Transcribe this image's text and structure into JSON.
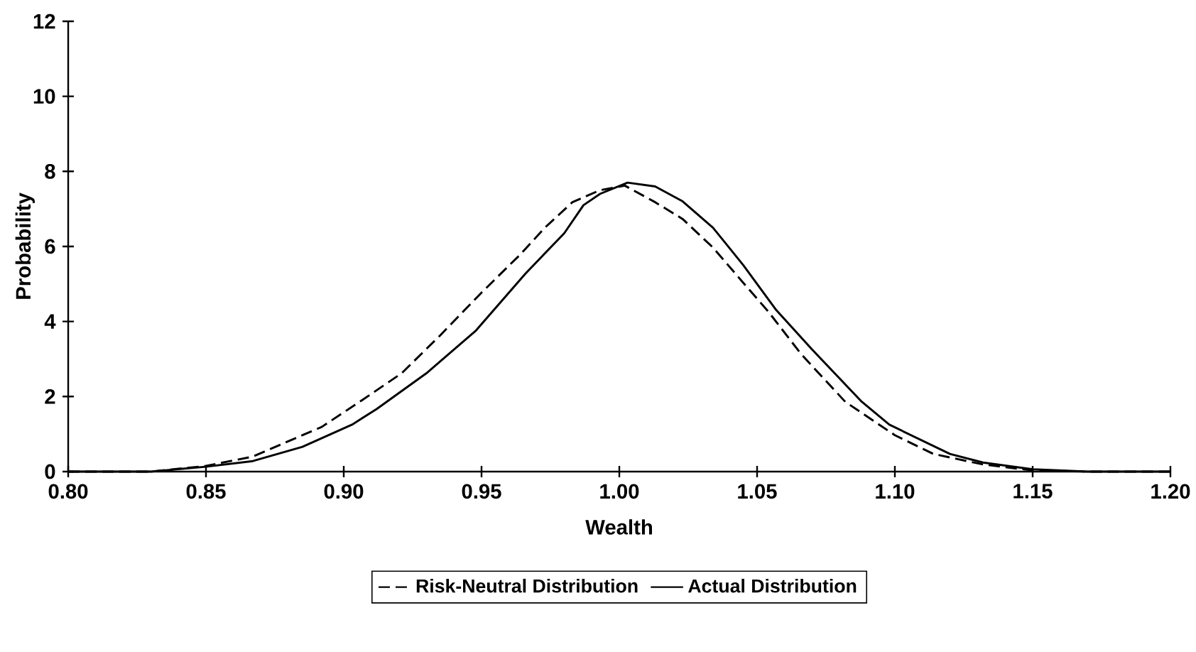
{
  "chart_data": {
    "type": "line",
    "xlabel": "Wealth",
    "ylabel": "Probability",
    "xlim": [
      0.8,
      1.2
    ],
    "ylim": [
      0,
      12
    ],
    "xticks": [
      {
        "value": 0.8,
        "label": "0.80"
      },
      {
        "value": 0.85,
        "label": "0.85"
      },
      {
        "value": 0.9,
        "label": "0.90"
      },
      {
        "value": 0.95,
        "label": "0.95"
      },
      {
        "value": 1.0,
        "label": "1.00"
      },
      {
        "value": 1.05,
        "label": "1.05"
      },
      {
        "value": 1.1,
        "label": "1.10"
      },
      {
        "value": 1.15,
        "label": "1.15"
      },
      {
        "value": 1.2,
        "label": "1.20"
      }
    ],
    "yticks": [
      0,
      2,
      4,
      6,
      8,
      10,
      12
    ],
    "grid": false,
    "legend": "bottom",
    "marker": "none",
    "series": [
      {
        "name": "Risk-Neutral Distribution",
        "color": "#000000",
        "line_style": "dashed",
        "x": [
          0.8,
          0.83,
          0.85,
          0.867,
          0.892,
          0.907,
          0.921,
          0.935,
          0.95,
          0.964,
          0.973,
          0.983,
          0.993,
          1.002,
          1.013,
          1.023,
          1.034,
          1.045,
          1.054,
          1.066,
          1.082,
          1.1,
          1.114,
          1.132,
          1.15,
          1.17,
          1.2
        ],
        "values": [
          0,
          0,
          0.15,
          0.4,
          1.19,
          1.92,
          2.62,
          3.63,
          4.77,
          5.78,
          6.5,
          7.18,
          7.5,
          7.62,
          7.18,
          6.73,
          5.97,
          5.03,
          4.27,
          3.13,
          1.86,
          0.97,
          0.47,
          0.19,
          0.03,
          0,
          0
        ]
      },
      {
        "name": "Actual Distribution",
        "color": "#000000",
        "line_style": "solid",
        "x": [
          0.8,
          0.83,
          0.85,
          0.867,
          0.885,
          0.903,
          0.912,
          0.93,
          0.948,
          0.966,
          0.98,
          0.987,
          0.993,
          1.003,
          1.013,
          1.023,
          1.034,
          1.045,
          1.057,
          1.07,
          1.088,
          1.098,
          1.12,
          1.132,
          1.15,
          1.17,
          1.2
        ],
        "values": [
          0,
          0,
          0.13,
          0.28,
          0.66,
          1.25,
          1.67,
          2.62,
          3.76,
          5.28,
          6.35,
          7.1,
          7.4,
          7.7,
          7.6,
          7.2,
          6.5,
          5.5,
          4.3,
          3.25,
          1.86,
          1.25,
          0.47,
          0.24,
          0.06,
          0,
          0
        ]
      }
    ]
  }
}
